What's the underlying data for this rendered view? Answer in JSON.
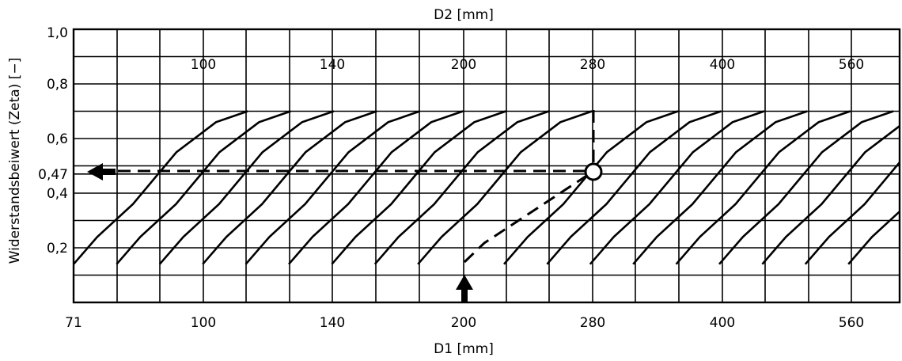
{
  "chart_data": {
    "type": "line",
    "xlabel": "D1 [mm]",
    "x2label": "D2 [mm]",
    "ylabel": "Widerstandsbeiwert (Zeta) [−]",
    "x_ticks": [
      "71",
      "100",
      "140",
      "200",
      "280",
      "400",
      "560"
    ],
    "x2_ticks": [
      "100",
      "140",
      "200",
      "280",
      "400",
      "560"
    ],
    "y_ticks": [
      "1,0",
      "0,8",
      "0,6",
      "0,47",
      "0,4",
      "0,2"
    ],
    "y_tick_values": [
      1.0,
      0.8,
      0.6,
      0.47,
      0.4,
      0.2
    ],
    "ylim": [
      0.0,
      1.0
    ],
    "grid": true,
    "curve_count": 19,
    "curve_zeta_range": [
      0.14,
      0.7
    ],
    "example": {
      "D1": "200",
      "D2": "280",
      "zeta": "0,47"
    }
  }
}
